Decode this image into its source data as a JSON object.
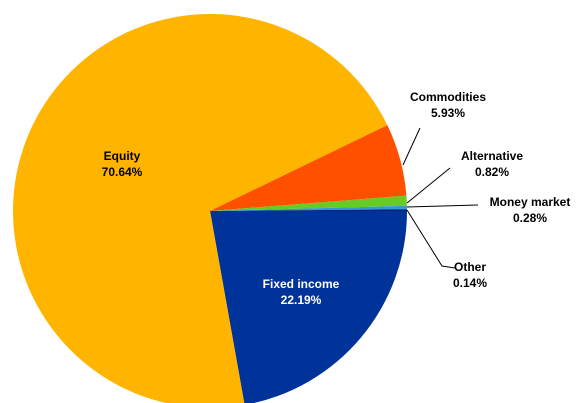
{
  "chart_data": {
    "type": "pie",
    "categories": [
      "Fixed income",
      "Equity",
      "Commodities",
      "Alternative",
      "Money market",
      "Other"
    ],
    "values": [
      22.19,
      70.64,
      5.93,
      0.82,
      0.28,
      0.14
    ],
    "value_labels": [
      "22.19%",
      "70.64%",
      "5.93%",
      "0.82%",
      "0.28%",
      "0.14%"
    ],
    "colors": [
      "#003399",
      "#FFB400",
      "#FF5000",
      "#66CC22",
      "#3399DD",
      "#002277"
    ]
  }
}
